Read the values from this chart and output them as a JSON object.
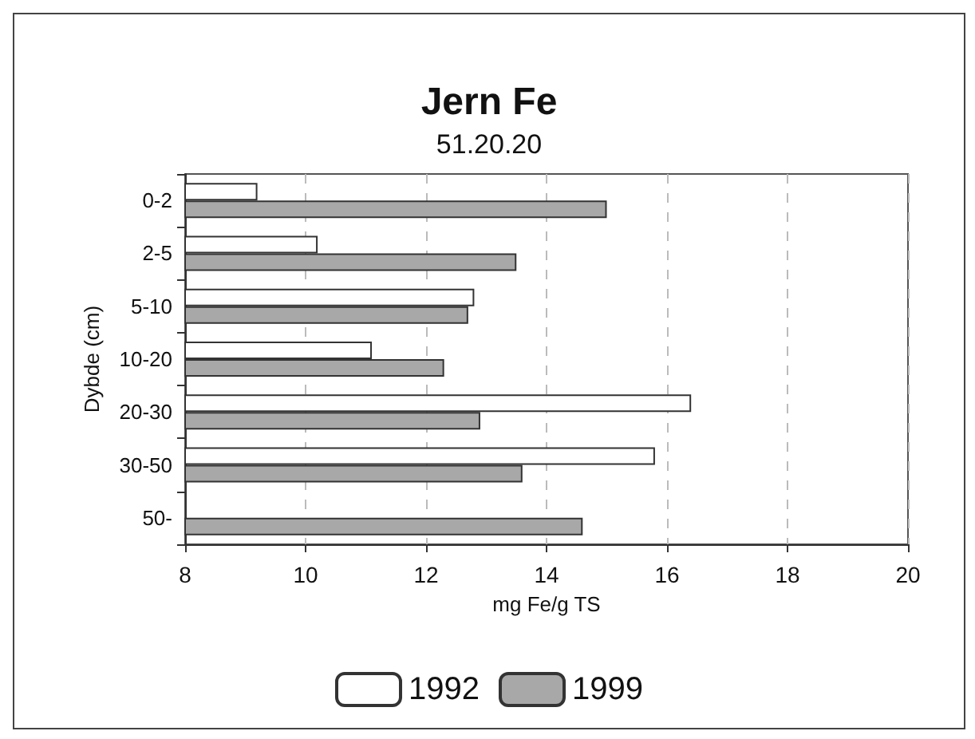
{
  "chart_data": {
    "type": "bar",
    "orientation": "horizontal",
    "title": "Jern Fe",
    "subtitle": "51.20.20",
    "xlabel": "mg Fe/g TS",
    "ylabel": "Dybde (cm)",
    "categories": [
      "0-2",
      "2-5",
      "5-10",
      "10-20",
      "20-30",
      "30-50",
      "50-"
    ],
    "series": [
      {
        "name": "1992",
        "color": "#ffffff",
        "values": [
          9.2,
          10.2,
          12.8,
          11.1,
          16.4,
          15.8,
          null
        ]
      },
      {
        "name": "1999",
        "color": "#a8a8a8",
        "values": [
          15.0,
          13.5,
          12.7,
          12.3,
          12.9,
          13.6,
          14.6
        ]
      }
    ],
    "xlim": [
      8,
      20
    ],
    "xticks": [
      8,
      10,
      12,
      14,
      16,
      18,
      20
    ],
    "grid": "x",
    "legend": "bottom"
  }
}
